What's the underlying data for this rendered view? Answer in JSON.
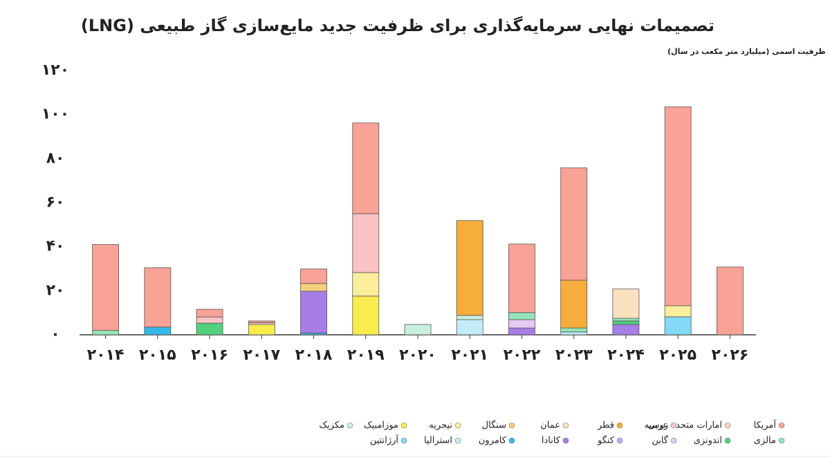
{
  "chart_data": {
    "type": "stacked-bar",
    "title": "تصمیمات نهایی سرمایه‌گذاری برای ظرفیت جدید مایع‌سازی گاز طبیعی (LNG)",
    "subtitle": "ظرفیت اسمی (میلیارد متر مکعب در سال)",
    "categories": [
      "۲۰۱۴",
      "۲۰۱۵",
      "۲۰۱۶",
      "۲۰۱۷",
      "۲۰۱۸",
      "۲۰۱۹",
      "۲۰۲۰",
      "۲۰۲۱",
      "۲۰۲۲",
      "۲۰۲۳",
      "۲۰۲۴",
      "۲۰۲۵",
      "۲۰۲۶"
    ],
    "ylim": [
      0,
      120
    ],
    "yticks": [
      {
        "value": 0,
        "label": "۰"
      },
      {
        "value": 20,
        "label": "۲۰"
      },
      {
        "value": 40,
        "label": "۴۰"
      },
      {
        "value": 60,
        "label": "۶۰"
      },
      {
        "value": 80,
        "label": "۸۰"
      },
      {
        "value": 100,
        "label": "۱۰۰"
      },
      {
        "value": 120,
        "label": "۱۲۰"
      }
    ],
    "series": [
      {
        "name": "آمریکا",
        "color": "#f9a296",
        "values": [
          39,
          27,
          3.5,
          0.8,
          6.6,
          41.2,
          null,
          null,
          31.1,
          51,
          null,
          90.3,
          30.8
        ]
      },
      {
        "name": "امارات متحده عربی",
        "color": "#f8d3c4",
        "values": [
          null,
          null,
          null,
          null,
          null,
          null,
          null,
          null,
          null,
          null,
          null,
          null,
          null
        ]
      },
      {
        "name": "روسیه",
        "color": "#fac4c4",
        "values": [
          null,
          null,
          2.8,
          0.8,
          null,
          26.7,
          null,
          null,
          null,
          null,
          null,
          null,
          null
        ]
      },
      {
        "name": "قطر",
        "color": "#f6ad3c",
        "values": [
          null,
          null,
          null,
          null,
          null,
          null,
          null,
          43.1,
          null,
          21.7,
          null,
          null,
          null
        ]
      },
      {
        "name": "عمان",
        "color": "#fbe0c0",
        "values": [
          null,
          null,
          null,
          null,
          null,
          null,
          null,
          null,
          null,
          null,
          13.3,
          null,
          null
        ]
      },
      {
        "name": "سنگال",
        "color": "#f5cf80",
        "values": [
          null,
          null,
          null,
          null,
          3.5,
          null,
          null,
          null,
          null,
          null,
          null,
          null,
          null
        ]
      },
      {
        "name": "نیجریه",
        "color": "#fbee9c",
        "values": [
          null,
          null,
          null,
          null,
          null,
          10.7,
          null,
          null,
          null,
          null,
          null,
          5,
          null
        ]
      },
      {
        "name": "موزامبیک",
        "color": "#f8ec4e",
        "values": [
          null,
          null,
          null,
          4.7,
          null,
          17.6,
          null,
          null,
          null,
          null,
          null,
          null,
          null
        ]
      },
      {
        "name": "مکزیک",
        "color": "#c8f0dc",
        "values": [
          null,
          null,
          null,
          null,
          null,
          null,
          4.7,
          1.9,
          null,
          null,
          null,
          null,
          null
        ]
      },
      {
        "name": "مالزی",
        "color": "#94e4b8",
        "values": [
          2,
          null,
          null,
          null,
          null,
          null,
          null,
          null,
          3.2,
          1.8,
          1.2,
          null,
          null
        ]
      },
      {
        "name": "اندونزی",
        "color": "#52d07e",
        "values": [
          null,
          null,
          5.3,
          null,
          null,
          null,
          null,
          null,
          null,
          null,
          1.6,
          null,
          null
        ]
      },
      {
        "name": "گابن",
        "color": "#e4caf2",
        "values": [
          null,
          null,
          null,
          null,
          null,
          null,
          null,
          null,
          3.8,
          null,
          null,
          null,
          null
        ]
      },
      {
        "name": "کنگو",
        "color": "#c4a4f2",
        "values": [
          null,
          null,
          null,
          null,
          null,
          null,
          null,
          null,
          null,
          null,
          null,
          null,
          null
        ]
      },
      {
        "name": "کانادا",
        "color": "#a77de6",
        "values": [
          null,
          null,
          null,
          null,
          19,
          null,
          null,
          null,
          3.1,
          null,
          4.7,
          null,
          null
        ]
      },
      {
        "name": "کامرون",
        "color": "#34b9ea",
        "values": [
          null,
          3.5,
          null,
          null,
          0.8,
          null,
          null,
          null,
          null,
          null,
          null,
          null,
          null
        ]
      },
      {
        "name": "استرالیا",
        "color": "#c4ebf8",
        "values": [
          null,
          null,
          null,
          null,
          null,
          null,
          null,
          6.9,
          null,
          1.3,
          null,
          null,
          null
        ]
      },
      {
        "name": "آرژانتین",
        "color": "#84d9f6",
        "values": [
          null,
          null,
          null,
          null,
          null,
          null,
          null,
          null,
          null,
          null,
          null,
          8.2,
          null
        ]
      }
    ]
  }
}
